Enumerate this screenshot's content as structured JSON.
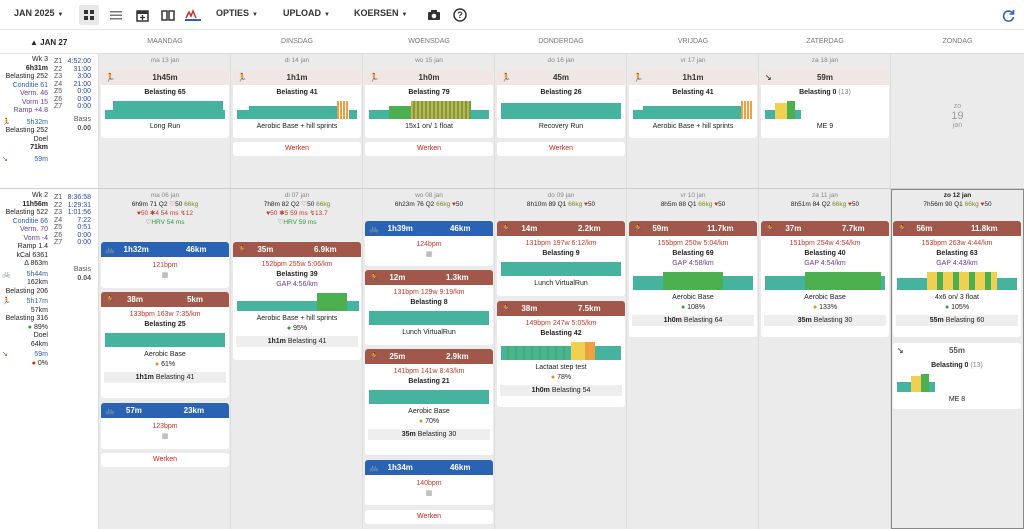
{
  "toolbar": {
    "month": "JAN 2025",
    "options": "OPTIES",
    "upload": "UPLOAD",
    "koersen": "KOERSEN"
  },
  "header": {
    "month": "JAN 27",
    "days": [
      "MAANDAG",
      "DINSDAG",
      "WOENSDAG",
      "DONDERDAG",
      "VRIJDAG",
      "ZATERDAG",
      "ZONDAG"
    ]
  },
  "week3": {
    "title": "Wk 3",
    "time": "6h31m",
    "belasting": "Belasting 252",
    "conditie": "Conditie 61",
    "verm": "Verm. 46",
    "vorm": "Vorm 15",
    "ramp": "Ramp +4.8",
    "run_time": "5h32m",
    "run_bel": "Belasting 252",
    "doel": "Doel",
    "doel_km": "71km",
    "bike": "59m",
    "zones": [
      "Z1",
      "Z2",
      "Z3",
      "Z4",
      "Z5",
      "Z6",
      "Z7"
    ],
    "zvals": [
      "4:52:00",
      "31:00",
      "3:00",
      "21:00",
      "0:00",
      "0:00",
      "0:00"
    ],
    "basis": "Basis",
    "basis_val": "0.00",
    "dates": [
      "ma 13 jan",
      "di 14 jan",
      "wo 15 jan",
      "do 16 jan",
      "vr 17 jan",
      "za 18 jan"
    ],
    "zo": {
      "dow": "zo",
      "day": "19",
      "mon": "jan"
    },
    "cards": [
      {
        "time": "1h45m",
        "bel": "Belasting 65",
        "name": "Long Run"
      },
      {
        "time": "1h1m",
        "bel": "Belasting 41",
        "name": "Aerobic Base + hill sprints",
        "btn": "Werken"
      },
      {
        "time": "1h0m",
        "bel": "Belasting 79",
        "name": "15x1 on/ 1 float",
        "btn": "Werken"
      },
      {
        "time": "45m",
        "bel": "Belasting 26",
        "name": "Recovery Run",
        "btn": "Werken"
      },
      {
        "time": "1h1m",
        "bel": "Belasting 41",
        "name": "Aerobic Base + hill sprints"
      },
      {
        "time": "59m",
        "bel": "Belasting 0",
        "bel2": "(13)",
        "name": "ME 9"
      }
    ]
  },
  "week2": {
    "title": "Wk 2",
    "time": "11h56m",
    "belasting": "Belasting 522",
    "conditie": "Conditie 66",
    "verm": "Verm. 70",
    "vorm": "Vorm -4",
    "ramp": "Ramp 1.4",
    "kcal": "kCal 6361",
    "elev": "Δ 863m",
    "bike_time": "5h44m",
    "bike_km": "162km",
    "bike_bel": "Belasting 206",
    "run_time": "5h17m",
    "run_km": "57km",
    "run_bel": "Belasting 316",
    "pct": "89%",
    "doel": "Doel",
    "doel_km": "64km",
    "other": "59m",
    "other_pct": "0%",
    "zones": [
      "Z1",
      "Z2",
      "Z3",
      "Z4",
      "Z5",
      "Z6",
      "Z7"
    ],
    "zvals": [
      "8:36:58",
      "1:29:31",
      "1:01:56",
      "7:22",
      "0:51",
      "0:00",
      "0:00"
    ],
    "basis": "Basis",
    "basis_val": "0.04",
    "days": [
      {
        "date": "ma 06 jan",
        "sleep": "6h9m 71 Q2",
        "hr": "50",
        "kg": "66kg",
        "l2a": "50",
        "l2b": "4",
        "l2c": "54 ms",
        "l2d": "12",
        "hrv": "HRV 54 ms"
      },
      {
        "date": "di 07 jan",
        "sleep": "7h8m 82 Q2",
        "hr": "50",
        "kg": "66kg",
        "l2a": "50",
        "l2b": "5",
        "l2c": "59 ms",
        "l2d": "13.7",
        "hrv": "HRV 59 ms"
      },
      {
        "date": "wo 08 jan",
        "sleep": "6h23m 76 Q2",
        "kg": "66kg",
        "hr": "50"
      },
      {
        "date": "do 09 jan",
        "sleep": "8h10m 89 Q1",
        "kg": "66kg",
        "hr": "50"
      },
      {
        "date": "vr 10 jan",
        "sleep": "8h5m 88 Q1",
        "kg": "66kg",
        "hr": "50"
      },
      {
        "date": "za 11 jan",
        "sleep": "8h51m 84 Q2",
        "kg": "66kg",
        "hr": "50"
      },
      {
        "date": "zo 12 jan",
        "sleep": "7h56m 90 Q1",
        "kg": "66kg",
        "hr": "50"
      }
    ],
    "acts": {
      "mon1": {
        "t": "1h32m",
        "d": "46km",
        "bpm": "121bpm"
      },
      "mon2": {
        "t": "38m",
        "d": "5km",
        "l1": "133bpm 163w 7:35/km",
        "bel": "Belasting 25",
        "name": "Aerobic Base",
        "pct": "61%",
        "foot": "1h1m",
        "footbel": "Belasting 41"
      },
      "mon3": {
        "t": "57m",
        "d": "23km",
        "bpm": "123bpm",
        "btn": "Werken"
      },
      "tue1": {
        "t": "35m",
        "d": "6.9km",
        "l1": "152bpm 255w 5:06/km",
        "bel": "Belasting 39",
        "gap": "GAP 4:56/km",
        "name": "Aerobic Base + hill sprints",
        "pct": "95%",
        "foot": "1h1m",
        "footbel": "Belasting 41"
      },
      "wed1": {
        "t": "1h39m",
        "d": "46km",
        "bpm": "124bpm"
      },
      "wed2": {
        "t": "12m",
        "d": "1.3km",
        "l1": "131bpm 129w 9:19/km",
        "bel": "Belasting 8",
        "name": "Lunch VirtualRun"
      },
      "wed3": {
        "t": "25m",
        "d": "2.9km",
        "l1": "141bpm 141w 8:43/km",
        "bel": "Belasting 21",
        "name": "Aerobic Base",
        "pct": "70%",
        "foot": "35m",
        "footbel": "Belasting 30"
      },
      "wed4": {
        "t": "1h34m",
        "d": "46km",
        "bpm": "140bpm",
        "btn": "Werken"
      },
      "thu1": {
        "t": "14m",
        "d": "2.2km",
        "l1": "131bpm 197w 6:12/km",
        "bel": "Belasting 9",
        "name": "Lunch VirtualRun"
      },
      "thu2": {
        "t": "38m",
        "d": "7.5km",
        "l1": "149bpm 247w 5:05/km",
        "bel": "Belasting 42",
        "name": "Lactaat step test",
        "pct": "78%",
        "foot": "1h0m",
        "footbel": "Belasting 54"
      },
      "fri1": {
        "t": "59m",
        "d": "11.7km",
        "l1": "155bpm 250w 5:04/km",
        "bel": "Belasting 69",
        "gap": "GAP 4:58/km",
        "name": "Aerobic Base",
        "pct": "108%",
        "foot": "1h0m",
        "footbel": "Belasting 64"
      },
      "sat1": {
        "t": "37m",
        "d": "7.7km",
        "l1": "151bpm 254w 4:54/km",
        "bel": "Belasting 40",
        "gap": "GAP 4:54/km",
        "name": "Aerobic Base",
        "pct": "133%",
        "foot": "35m",
        "footbel": "Belasting 30"
      },
      "sun1": {
        "t": "56m",
        "d": "11.8km",
        "l1": "153bpm 263w 4:44/km",
        "bel": "Belasting 63",
        "gap": "GAP 4:43/km",
        "name": "4x6 on/ 3 float",
        "pct": "105%",
        "foot": "55m",
        "footbel": "Belasting 60"
      },
      "sun2": {
        "t": "55m",
        "bel": "Belasting 0",
        "bel2": "(13)",
        "name": "ME 8"
      }
    }
  }
}
